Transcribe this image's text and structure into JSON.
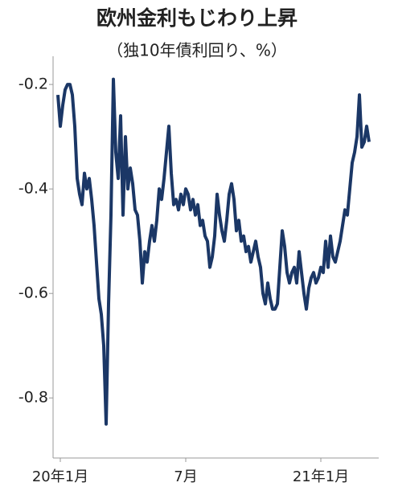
{
  "chart_data": {
    "type": "line",
    "title": "欧州金利もじわり上昇",
    "subtitle": "（独10年債利回り、%）",
    "x": [
      0,
      1,
      2,
      3,
      4,
      5,
      6,
      7,
      8,
      9,
      10,
      11,
      12,
      13,
      14,
      15,
      16,
      17,
      18,
      19,
      20,
      21,
      22,
      23,
      24,
      25,
      26,
      27,
      28,
      29,
      30,
      31,
      32,
      33,
      34,
      35,
      36,
      37,
      38,
      39,
      40,
      41,
      42,
      43,
      44,
      45,
      46,
      47,
      48,
      49,
      50,
      51,
      52,
      53,
      54,
      55,
      56,
      57,
      58,
      59,
      60,
      61,
      62,
      63,
      64,
      65,
      66,
      67,
      68,
      69,
      70,
      71,
      72,
      73,
      74,
      75,
      76,
      77,
      78,
      79,
      80,
      81,
      82,
      83,
      84,
      85,
      86,
      87,
      88,
      89,
      90,
      91,
      92,
      93,
      94,
      95,
      96,
      97,
      98,
      99,
      100,
      101,
      102,
      103,
      104,
      105,
      106,
      107,
      108,
      109,
      110,
      111,
      112,
      113,
      114,
      115,
      116,
      117,
      118,
      119,
      120,
      121,
      122,
      123,
      124,
      125,
      126,
      127,
      128,
      129
    ],
    "series": [
      {
        "color": "#1b3766",
        "values": [
          -0.22,
          -0.28,
          -0.24,
          -0.21,
          -0.2,
          -0.2,
          -0.22,
          -0.28,
          -0.38,
          -0.41,
          -0.43,
          -0.37,
          -0.4,
          -0.38,
          -0.42,
          -0.47,
          -0.54,
          -0.61,
          -0.64,
          -0.7,
          -0.85,
          -0.62,
          -0.45,
          -0.19,
          -0.33,
          -0.38,
          -0.26,
          -0.45,
          -0.3,
          -0.4,
          -0.36,
          -0.39,
          -0.44,
          -0.45,
          -0.5,
          -0.58,
          -0.52,
          -0.54,
          -0.5,
          -0.47,
          -0.5,
          -0.46,
          -0.4,
          -0.42,
          -0.38,
          -0.33,
          -0.28,
          -0.37,
          -0.43,
          -0.42,
          -0.44,
          -0.41,
          -0.43,
          -0.4,
          -0.41,
          -0.44,
          -0.42,
          -0.45,
          -0.43,
          -0.47,
          -0.46,
          -0.49,
          -0.5,
          -0.55,
          -0.53,
          -0.49,
          -0.41,
          -0.45,
          -0.48,
          -0.5,
          -0.46,
          -0.41,
          -0.39,
          -0.42,
          -0.48,
          -0.46,
          -0.5,
          -0.49,
          -0.52,
          -0.51,
          -0.54,
          -0.52,
          -0.5,
          -0.53,
          -0.55,
          -0.6,
          -0.62,
          -0.58,
          -0.61,
          -0.63,
          -0.63,
          -0.62,
          -0.55,
          -0.48,
          -0.51,
          -0.56,
          -0.58,
          -0.56,
          -0.55,
          -0.58,
          -0.52,
          -0.56,
          -0.6,
          -0.63,
          -0.59,
          -0.57,
          -0.56,
          -0.58,
          -0.57,
          -0.55,
          -0.56,
          -0.5,
          -0.55,
          -0.49,
          -0.53,
          -0.54,
          -0.52,
          -0.5,
          -0.47,
          -0.44,
          -0.45,
          -0.4,
          -0.35,
          -0.33,
          -0.3,
          -0.22,
          -0.32,
          -0.31,
          -0.28,
          -0.31
        ]
      }
    ],
    "xlim": [
      -2,
      133
    ],
    "xticks": [
      {
        "value": 1,
        "label": "20年1月"
      },
      {
        "value": 53,
        "label": "7月"
      },
      {
        "value": 109,
        "label": "21年1月"
      }
    ],
    "ylim": [
      -0.915,
      -0.146
    ],
    "yticks": [
      -0.2,
      -0.4,
      -0.6,
      -0.8
    ]
  }
}
